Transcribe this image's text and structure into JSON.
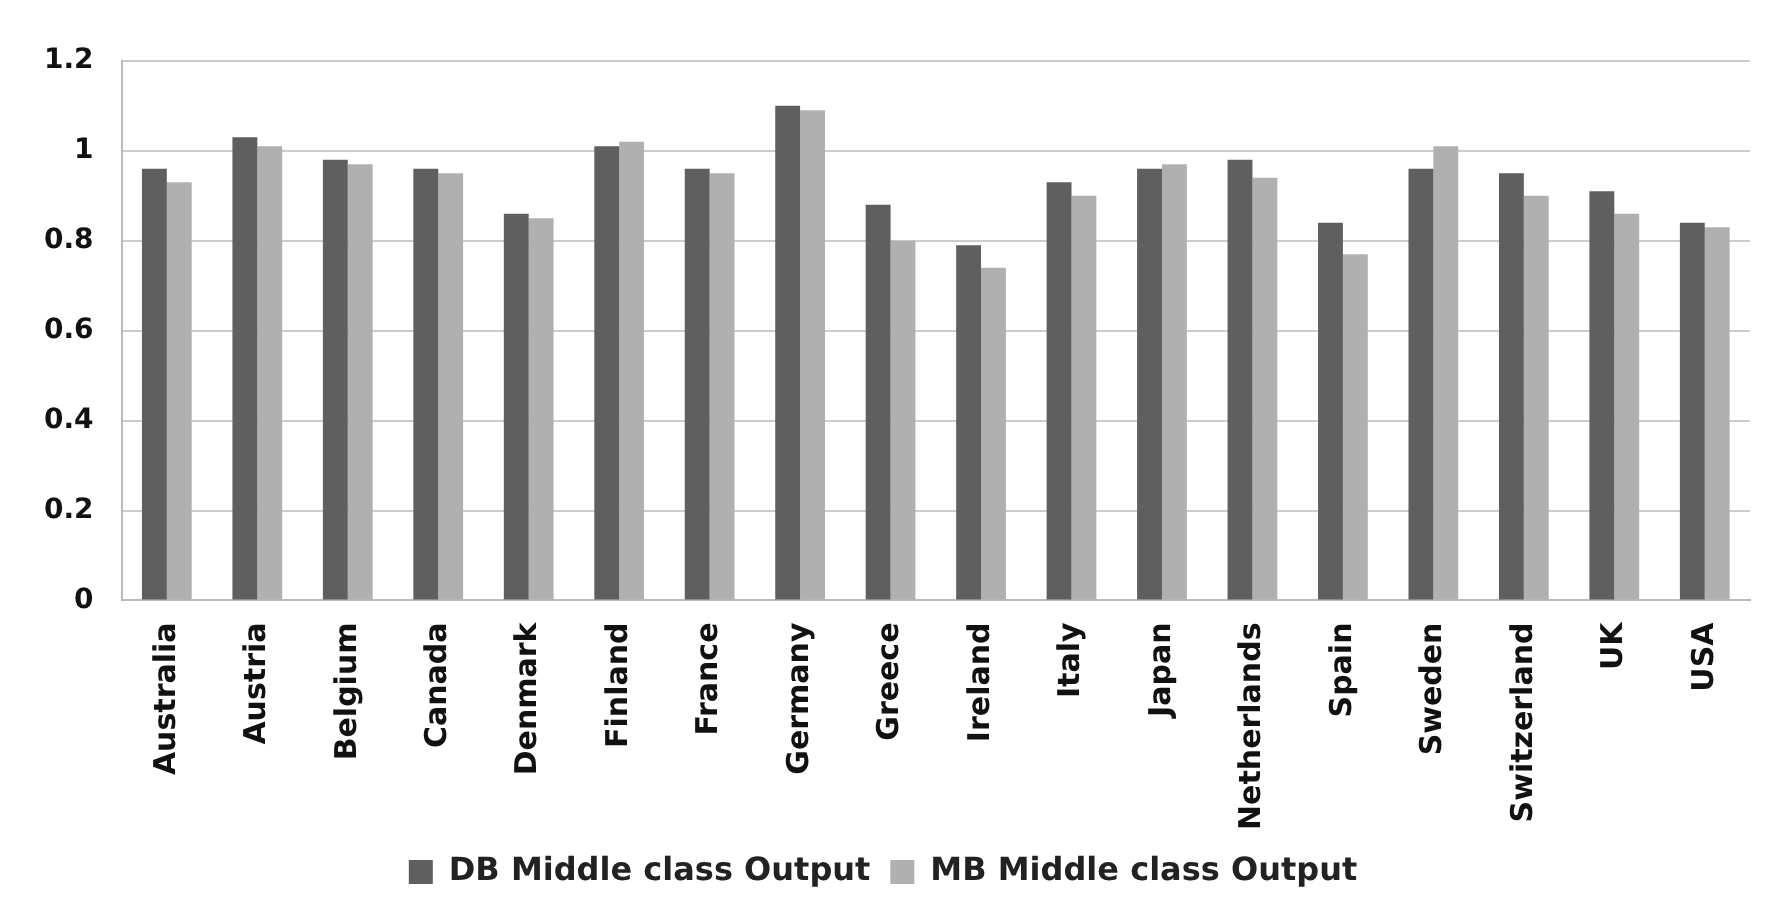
{
  "chart_data": {
    "type": "bar",
    "categories": [
      "Australia",
      "Austria",
      "Belgium",
      "Canada",
      "Denmark",
      "Finland",
      "France",
      "Germany",
      "Greece",
      "Ireland",
      "Italy",
      "Japan",
      "Netherlands",
      "Spain",
      "Sweden",
      "Switzerland",
      "UK",
      "USA"
    ],
    "series": [
      {
        "name": "DB Middle class Output",
        "color": "#5f5f5f",
        "values": [
          0.96,
          1.03,
          0.98,
          0.96,
          0.86,
          1.01,
          0.96,
          1.1,
          0.88,
          0.79,
          0.93,
          0.96,
          0.98,
          0.84,
          0.96,
          0.95,
          0.91,
          0.84
        ]
      },
      {
        "name": "MB Middle class Output",
        "color": "#b0b0b0",
        "values": [
          0.93,
          1.01,
          0.97,
          0.95,
          0.85,
          1.02,
          0.95,
          1.09,
          0.8,
          0.74,
          0.9,
          0.97,
          0.94,
          0.77,
          1.01,
          0.9,
          0.86,
          0.83
        ]
      }
    ],
    "ylim": [
      0,
      1.2
    ],
    "yticks": [
      0,
      0.2,
      0.4,
      0.6,
      0.8,
      1,
      1.2
    ],
    "grid": "y",
    "legend": "bottom"
  }
}
